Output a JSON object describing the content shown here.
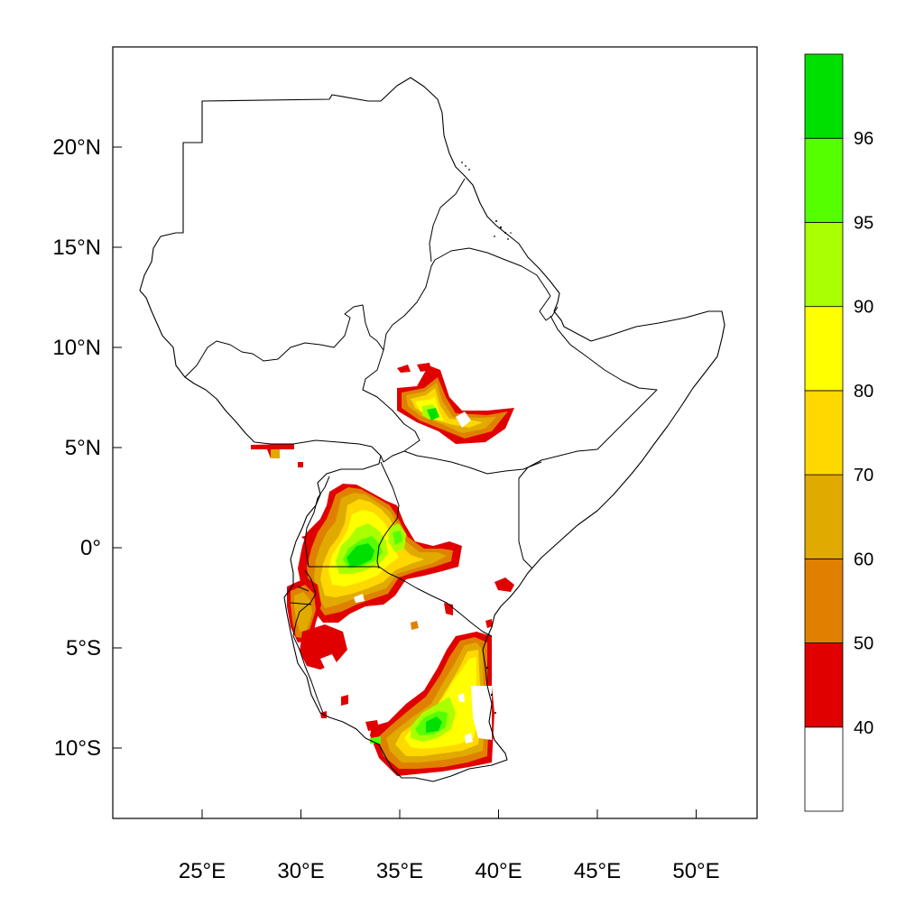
{
  "map": {
    "projection": "lat-lon",
    "lon_range": [
      20.5,
      53.0
    ],
    "lat_range": [
      -13.5,
      25.0
    ],
    "x_ticks": [
      {
        "value": 25,
        "label": "25°E"
      },
      {
        "value": 30,
        "label": "30°E"
      },
      {
        "value": 35,
        "label": "35°E"
      },
      {
        "value": 40,
        "label": "40°E"
      },
      {
        "value": 45,
        "label": "45°E"
      },
      {
        "value": 50,
        "label": "50°E"
      }
    ],
    "y_ticks": [
      {
        "value": 20,
        "label": "20°N"
      },
      {
        "value": 15,
        "label": "15°N"
      },
      {
        "value": 10,
        "label": "10°N"
      },
      {
        "value": 5,
        "label": "5°N"
      },
      {
        "value": 0,
        "label": "0°"
      },
      {
        "value": -5,
        "label": "5°S"
      },
      {
        "value": -10,
        "label": "10°S"
      }
    ]
  },
  "colorbar": {
    "levels": [
      {
        "label": "",
        "color": "#ffffff"
      },
      {
        "label": "40",
        "color": "#e00000"
      },
      {
        "label": "50",
        "color": "#e08000"
      },
      {
        "label": "60",
        "color": "#e0aa00"
      },
      {
        "label": "70",
        "color": "#ffd800"
      },
      {
        "label": "80",
        "color": "#ffff00"
      },
      {
        "label": "90",
        "color": "#aaff00"
      },
      {
        "label": "95",
        "color": "#55ff00"
      },
      {
        "label": "96",
        "color": "#00e000"
      }
    ]
  }
}
